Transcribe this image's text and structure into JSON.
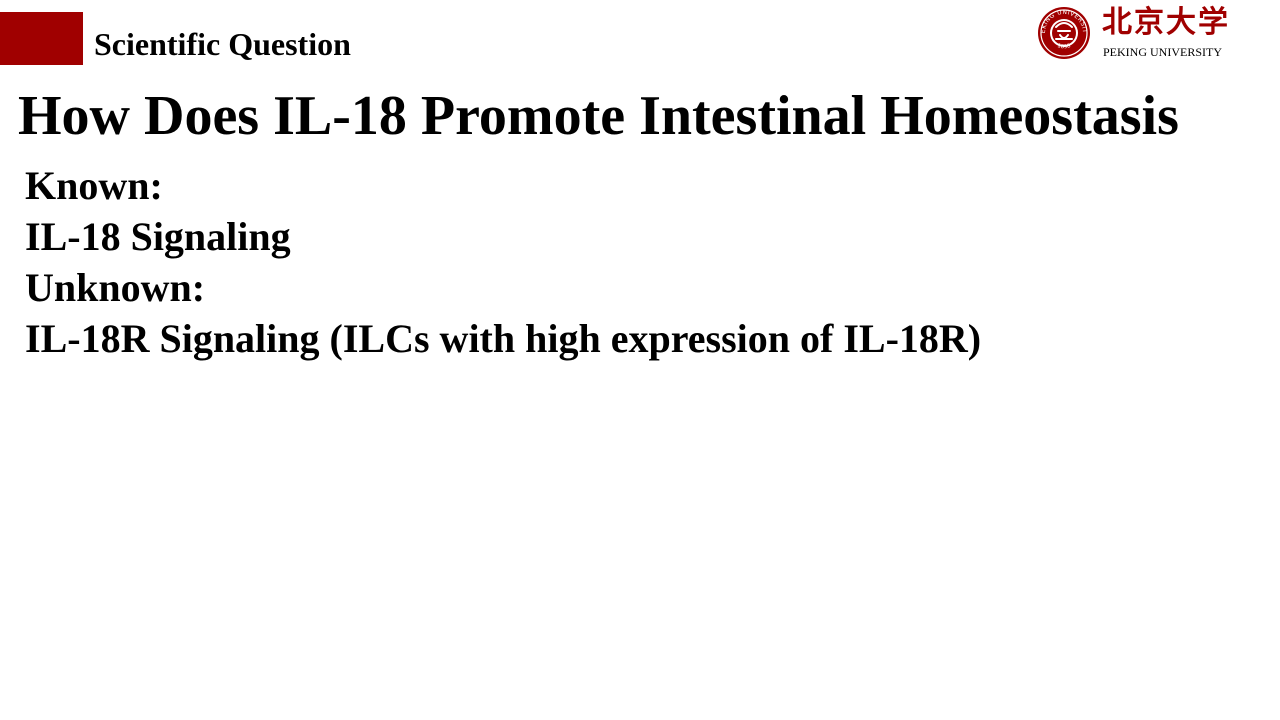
{
  "header": {
    "section_label": "Scientific Question",
    "accent_color": "#a00000"
  },
  "logo": {
    "chinese_name": "北京大学",
    "english_name": "PEKING UNIVERSITY",
    "seal_icon": "peking-university-seal-icon",
    "seal_ring_text": "PEKING UNIVERSITY",
    "seal_year": "1898",
    "brand_color": "#a00000"
  },
  "slide": {
    "title": "How Does IL-18 Promote Intestinal Homeostasis",
    "lines": [
      "Known:",
      "IL-18 Signaling",
      "Unknown:",
      "IL-18R Signaling (ILCs with high expression of IL-18R)"
    ]
  }
}
